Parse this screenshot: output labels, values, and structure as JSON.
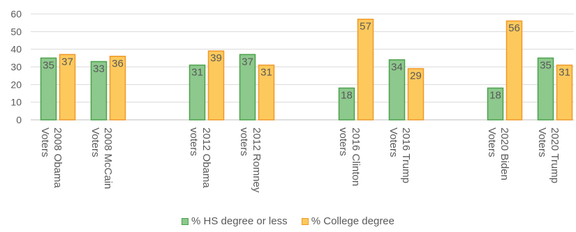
{
  "chart_data": {
    "type": "bar",
    "categories": [
      [
        "2008 Obama",
        "Voters"
      ],
      [
        "2008 McCain",
        "Voters"
      ],
      [
        "2012 Obama",
        "voters"
      ],
      [
        "2012 Romney",
        "voters"
      ],
      [
        "2016 Clinton",
        "voters"
      ],
      [
        "2016 Trump",
        "Voters"
      ],
      [
        "2020 Biden",
        "Voters"
      ],
      [
        "2020 Trump",
        "Voters"
      ]
    ],
    "series": [
      {
        "name": "% HS degree or less",
        "values": [
          35,
          33,
          31,
          37,
          18,
          34,
          18,
          35
        ]
      },
      {
        "name": "% College degree",
        "values": [
          37,
          36,
          39,
          31,
          57,
          29,
          56,
          31
        ]
      }
    ],
    "data_labels": [
      [
        "35",
        "33",
        "31",
        "37",
        "18",
        "34",
        "18",
        "35"
      ],
      [
        "37",
        "36",
        "39",
        "31",
        "57",
        "29",
        "56",
        "31"
      ]
    ],
    "yticks": [
      "0",
      "10",
      "20",
      "30",
      "40",
      "50",
      "60"
    ],
    "ylim": [
      0,
      60
    ],
    "grid": true,
    "legend_position": "bottom",
    "colors": {
      "series_fill": [
        "#8dc88d",
        "#fdc95c"
      ],
      "series_stroke": [
        "#4aa24a",
        "#f0982a"
      ],
      "grid": "#d9d9d9",
      "axis": "#bfbfbf"
    }
  }
}
